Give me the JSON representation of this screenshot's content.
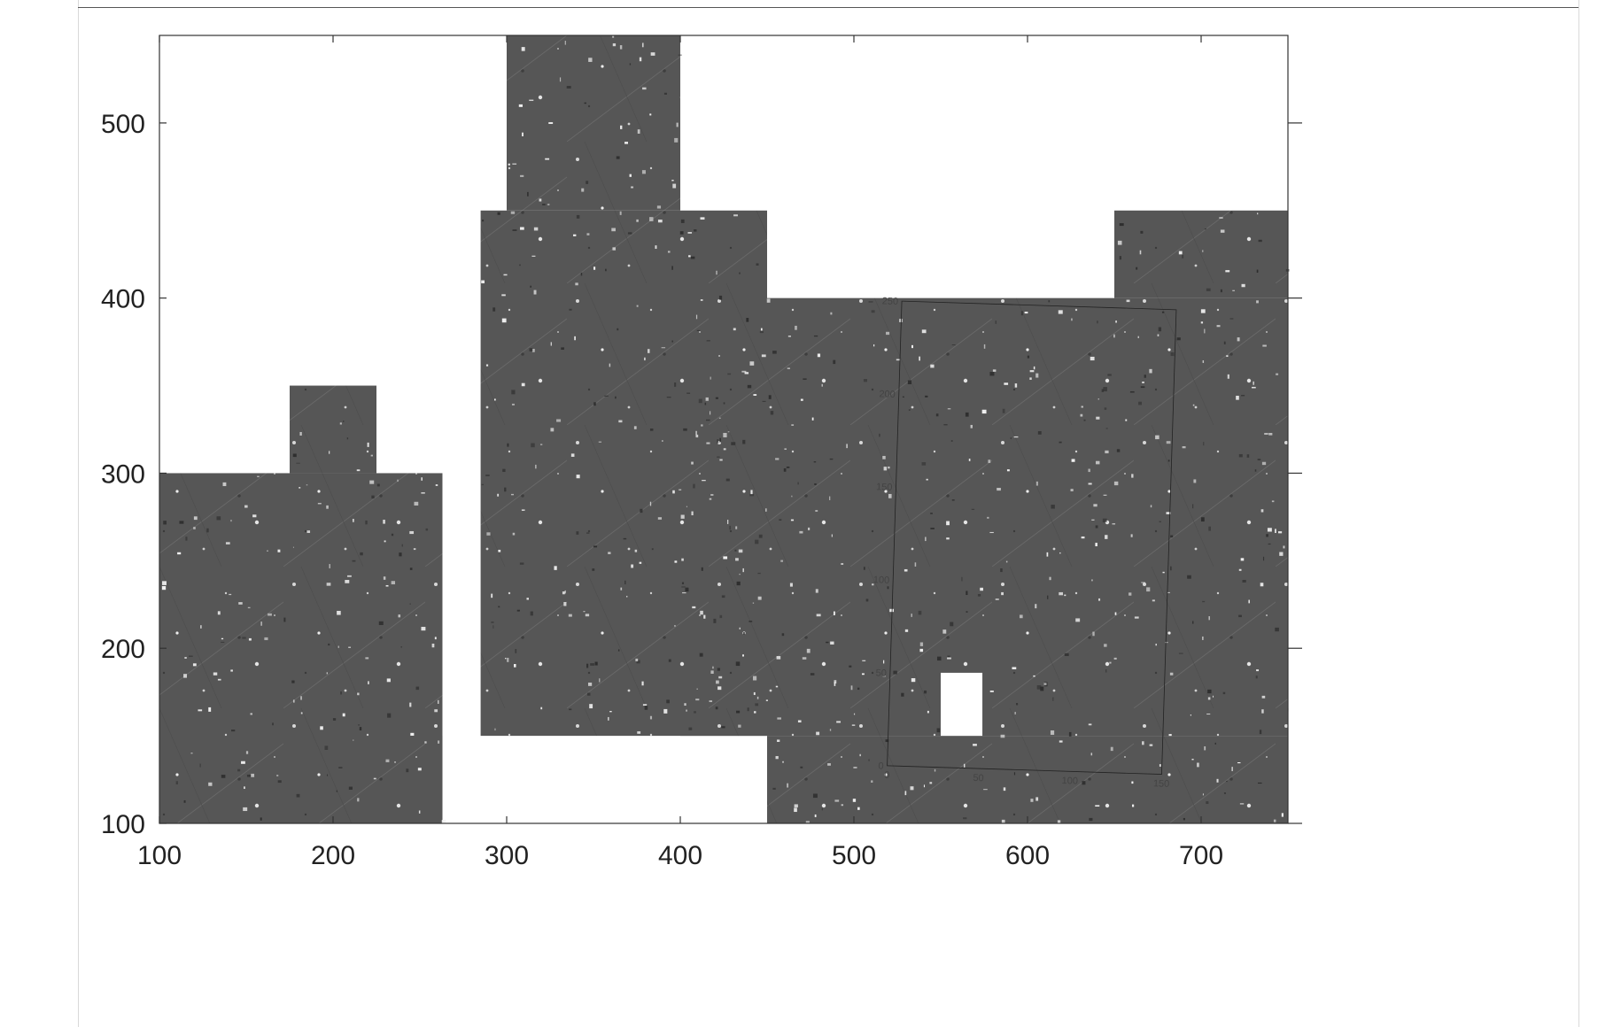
{
  "chart_data": {
    "type": "raster-map",
    "xlim": [
      100,
      750
    ],
    "ylim": [
      100,
      550
    ],
    "x_ticks": [
      "100",
      "200",
      "300",
      "400",
      "500",
      "600",
      "700"
    ],
    "y_ticks": [
      "100",
      "200",
      "300",
      "400",
      "500"
    ],
    "coverage_areas": [
      {
        "x0": 100,
        "x1": 263,
        "y0": 100,
        "y1": 300
      },
      {
        "x0": 175,
        "x1": 225,
        "y0": 300,
        "y1": 350
      },
      {
        "x0": 250,
        "x1": 263,
        "y0": 100,
        "y1": 150
      },
      {
        "x0": 285,
        "x1": 450,
        "y0": 150,
        "y1": 450
      },
      {
        "x0": 300,
        "x1": 400,
        "y0": 450,
        "y1": 550
      },
      {
        "x0": 400,
        "x1": 750,
        "y0": 150,
        "y1": 400
      },
      {
        "x0": 450,
        "x1": 750,
        "y0": 100,
        "y1": 150
      },
      {
        "x0": 650,
        "x1": 750,
        "y0": 400,
        "y1": 450
      }
    ],
    "blank_areas": [
      {
        "x0": 550,
        "x1": 574,
        "y0": 150,
        "y1": 186
      }
    ],
    "inset_grid": {
      "x_ticks": [
        "0",
        "50",
        "100",
        "150"
      ],
      "y_ticks": [
        "0",
        "50",
        "100",
        "150",
        "200",
        "250"
      ]
    },
    "grid": false
  }
}
